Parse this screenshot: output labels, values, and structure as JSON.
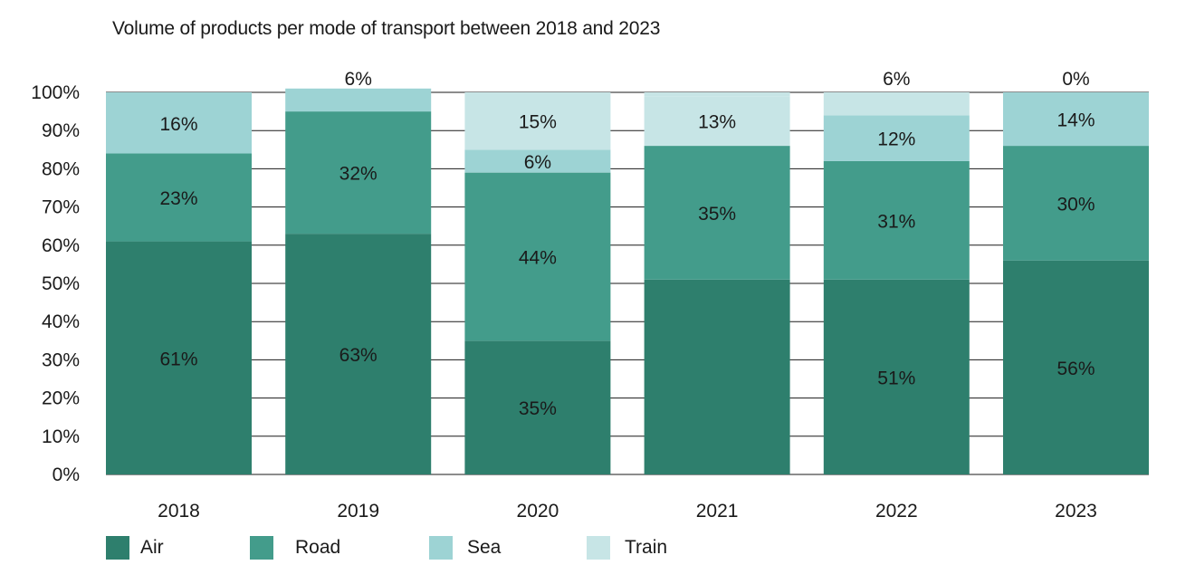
{
  "title": "Volume of products per mode of transport between 2018 and 2023",
  "colors": {
    "Air": "#2e7f6d",
    "Road": "#439c8b",
    "Sea": "#9dd3d4",
    "Train": "#c7e5e6",
    "grid": "#1a1a1a",
    "text": "#1a1a1a"
  },
  "legend": [
    "Air",
    "Road",
    "Sea",
    "Train"
  ],
  "chart_data": {
    "type": "bar",
    "stacked": true,
    "title": "Volume of products per mode of transport between 2018 and 2023",
    "xlabel": "",
    "ylabel": "",
    "ylim": [
      0,
      100
    ],
    "yticks": [
      "0%",
      "10%",
      "20%",
      "30%",
      "40%",
      "50%",
      "60%",
      "70%",
      "80%",
      "90%",
      "100%"
    ],
    "grid": true,
    "legend_position": "bottom-left",
    "categories": [
      "2018",
      "2019",
      "2020",
      "2021",
      "2022",
      "2023"
    ],
    "series": [
      {
        "name": "Air",
        "values": [
          61,
          63,
          35,
          51,
          51,
          56
        ],
        "labels": [
          "61%",
          "63%",
          "35%",
          "",
          "51%",
          "56%"
        ]
      },
      {
        "name": "Road",
        "values": [
          23,
          32,
          44,
          35,
          31,
          30
        ],
        "labels": [
          "23%",
          "32%",
          "44%",
          "35%",
          "31%",
          "30%"
        ]
      },
      {
        "name": "Sea",
        "values": [
          16,
          6,
          6,
          0,
          12,
          14
        ],
        "labels": [
          "16%",
          "6%",
          "6%",
          "",
          "12%",
          "14%"
        ]
      },
      {
        "name": "Train",
        "values": [
          0,
          0,
          15,
          13,
          6,
          0
        ],
        "labels": [
          "",
          "",
          "15%",
          "13%",
          "6%",
          "0%"
        ]
      }
    ]
  }
}
